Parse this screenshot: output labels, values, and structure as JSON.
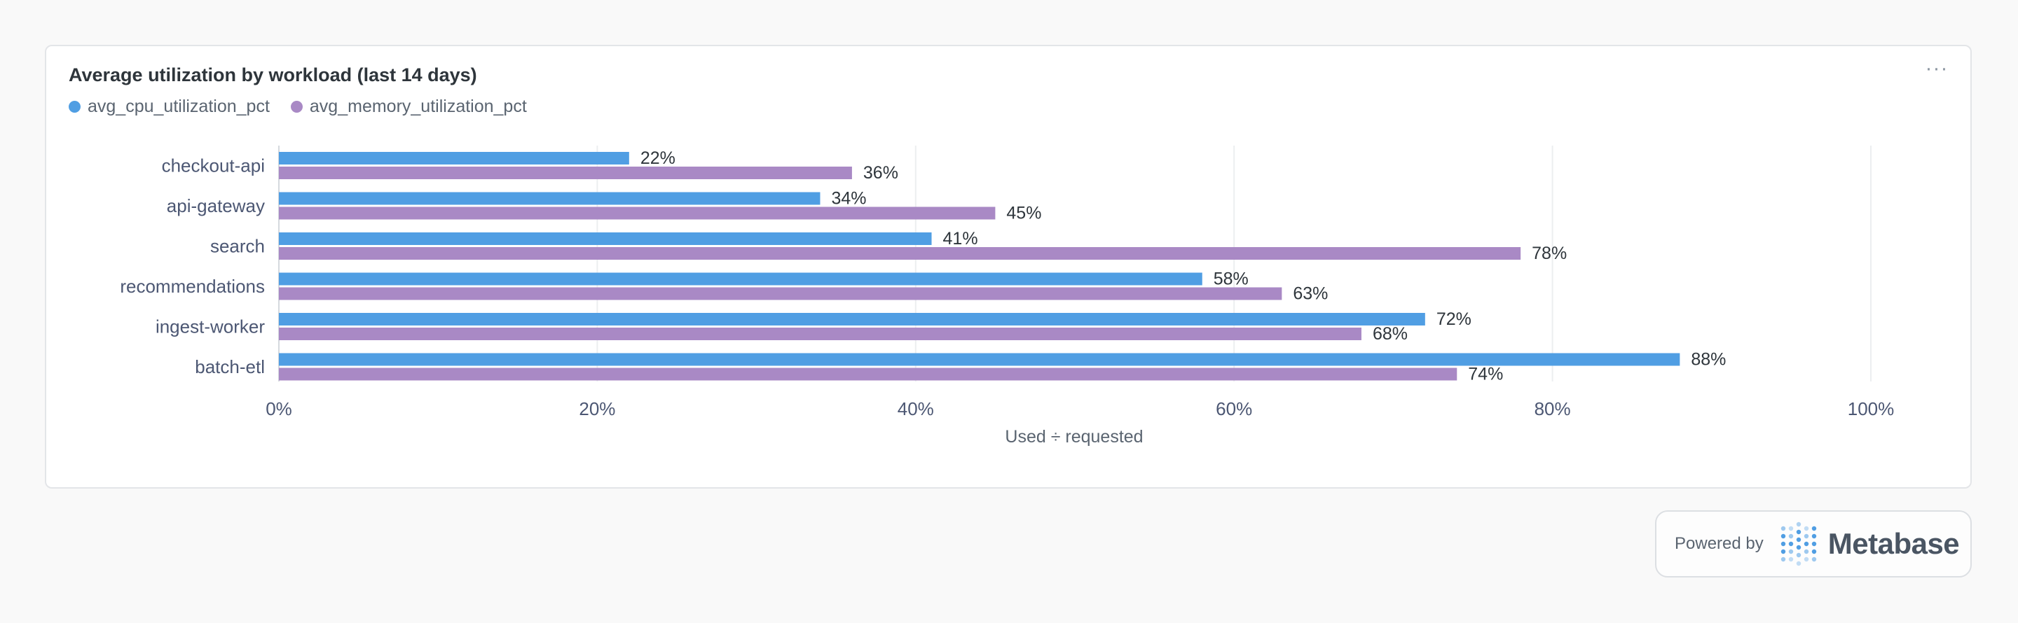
{
  "card": {
    "title": "Average utilization by workload (last 14 days)",
    "more_label": "···"
  },
  "colors": {
    "cpu": "#509ee3",
    "memory": "#a989c5",
    "grid": "#eceef0",
    "axis_text": "#4c5773",
    "bar_label": "#2e353b"
  },
  "chart_data": {
    "type": "bar",
    "orientation": "horizontal",
    "title": "Average utilization by workload (last 14 days)",
    "categories": [
      "checkout-api",
      "api-gateway",
      "search",
      "recommendations",
      "ingest-worker",
      "batch-etl"
    ],
    "series": [
      {
        "name": "avg_cpu_utilization_pct",
        "color": "#509ee3",
        "values": [
          22,
          34,
          41,
          58,
          72,
          88
        ]
      },
      {
        "name": "avg_memory_utilization_pct",
        "color": "#a989c5",
        "values": [
          36,
          45,
          78,
          63,
          68,
          74
        ]
      }
    ],
    "xlabel": "Used ÷ requested",
    "ylabel": "",
    "xlim": [
      0,
      100
    ],
    "x_ticks": [
      0,
      20,
      40,
      60,
      80,
      100
    ],
    "x_tick_labels": [
      "0%",
      "20%",
      "40%",
      "60%",
      "80%",
      "100%"
    ],
    "value_suffix": "%",
    "grid": true,
    "legend_position": "top-left"
  },
  "footer": {
    "powered_by": "Powered by",
    "brand": "Metabase"
  }
}
